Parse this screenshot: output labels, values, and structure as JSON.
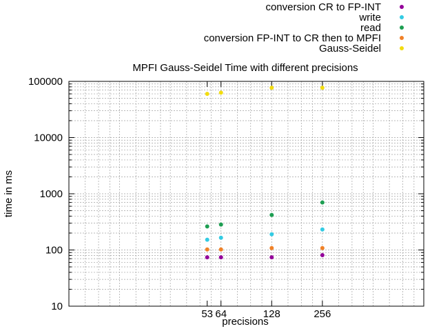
{
  "chart_data": {
    "type": "scatter",
    "title": "MPFI Gauss-Seidel Time with different precisions",
    "xlabel": "precisions",
    "ylabel": "time in ms",
    "x_scale": "log2",
    "y_scale": "log10",
    "xlim": [
      8,
      1024
    ],
    "ylim": [
      10,
      100000
    ],
    "x_ticks": [
      {
        "value": 53,
        "label": "53"
      },
      {
        "value": 64,
        "label": "64"
      },
      {
        "value": 128,
        "label": "128"
      },
      {
        "value": 256,
        "label": "256"
      }
    ],
    "y_ticks": [
      {
        "value": 10,
        "label": "10"
      },
      {
        "value": 100,
        "label": "100"
      },
      {
        "value": 1000,
        "label": "1000"
      },
      {
        "value": 10000,
        "label": "10000"
      },
      {
        "value": 100000,
        "label": "100000"
      }
    ],
    "grid": true,
    "legend_position": "top-right",
    "x": [
      53,
      64,
      128,
      256
    ],
    "series": [
      {
        "name": "conversion CR to FP-INT",
        "color": "#94009a",
        "values": [
          74,
          74,
          74,
          81
        ]
      },
      {
        "name": "write",
        "color": "#33cbe3",
        "values": [
          152,
          165,
          190,
          232
        ]
      },
      {
        "name": "read",
        "color": "#1e9e52",
        "values": [
          262,
          283,
          420,
          700
        ]
      },
      {
        "name": "conversion FP-INT to CR then to MPFI",
        "color": "#f08127",
        "values": [
          102,
          102,
          108,
          108
        ]
      },
      {
        "name": "Gauss-Seidel",
        "color": "#f2dc0f",
        "values": [
          60000,
          63000,
          77000,
          77000
        ]
      }
    ]
  }
}
